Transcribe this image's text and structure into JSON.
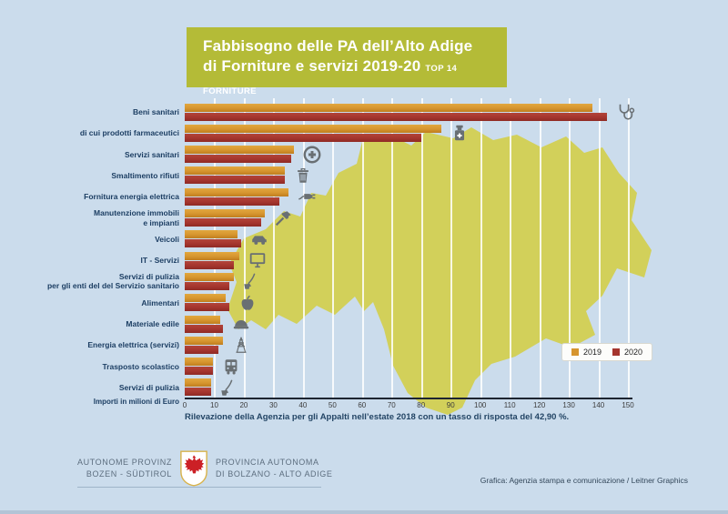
{
  "title": {
    "line1": "Fabbisogno delle PA dell’Alto Adige",
    "line2": "di Forniture e servizi 2019-20",
    "tag": "TOP 14 FORNITURE",
    "banner_color": "#b4bb37"
  },
  "chart_data": {
    "type": "bar",
    "orientation": "horizontal",
    "title": "Fabbisogno delle PA dell’Alto Adige di Forniture e servizi 2019-20 — Top 14 Forniture",
    "unit_label": "Importi in milioni di Euro",
    "xlim": [
      0,
      150
    ],
    "x_ticks": [
      0,
      10,
      20,
      30,
      40,
      50,
      60,
      70,
      80,
      90,
      100,
      110,
      120,
      130,
      140,
      150
    ],
    "grid": true,
    "legend_position": "bottom-right",
    "categories": [
      "Beni sanitari",
      "di cui prodotti farmaceutici",
      "Servizi sanitari",
      "Smaltimento rifiuti",
      "Fornitura energia elettrica",
      "Manutenzione immobili\ne impianti",
      "Veicoli",
      "IT - Servizi",
      "Servizi di pulizia\nper gli enti del del Servizio sanitario",
      "Alimentari",
      "Materiale edile",
      "Energia elettrica (servizi)",
      "Trasposto scolastico",
      "Servizi di pulizia"
    ],
    "category_icons": [
      "stethoscope-icon",
      "medicine-bottle-icon",
      "medical-cross-icon",
      "trash-icon",
      "plug-icon",
      "hammer-icon",
      "car-icon",
      "monitor-icon",
      "mop-bucket-icon",
      "apple-icon",
      "hard-hat-icon",
      "power-tower-icon",
      "bus-icon",
      "mop-bucket-icon"
    ],
    "series": [
      {
        "name": "2019",
        "color": "#d6952f",
        "values": [
          138,
          87,
          37,
          34,
          35,
          27,
          18,
          18.5,
          16.5,
          14,
          12,
          13,
          9.5,
          9
        ]
      },
      {
        "name": "2020",
        "color": "#a5352e",
        "values": [
          143,
          80,
          36,
          34,
          32,
          26,
          19,
          16.5,
          15,
          15,
          13,
          11.5,
          9.5,
          9
        ]
      }
    ]
  },
  "footnote": "Rilevazione della Agenzia per gli Appalti nell’estate 2018 con un tasso di risposta del 42,90 %.",
  "footer": {
    "left_line1": "AUTONOME PROVINZ",
    "left_line2": "BOZEN - SÜDTIROL",
    "right_line1": "PROVINCIA AUTONOMA",
    "right_line2": "DI BOLZANO - ALTO ADIGE",
    "credit": "Grafica: Agenzia stampa e comunicazione / Leitner Graphics"
  },
  "colors": {
    "page_bg": "#cbdcec",
    "banner": "#b4bb37",
    "map": "#d2cf52",
    "bar_2019": "#d6952f",
    "bar_2020": "#a5352e",
    "label_text": "#1c3e63",
    "icon_gray": "#696f73",
    "eagle_red": "#cc2026"
  }
}
